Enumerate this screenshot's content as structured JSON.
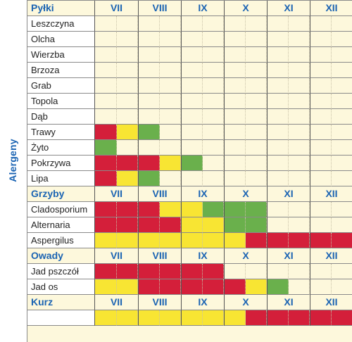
{
  "side_label": "Alergeny",
  "colors": {
    "red": "#d41f3a",
    "yellow": "#f8e533",
    "green": "#6ab04c",
    "background": "#fdf8dc",
    "header_text": "#1b64b3"
  },
  "months": [
    "VII",
    "VIII",
    "IX",
    "X",
    "XI",
    "XII"
  ],
  "half_month_columns": 12,
  "value_codes": {
    "0": "none",
    "1": "green",
    "2": "yellow",
    "3": "red"
  },
  "sections": [
    {
      "title": "Pyłki",
      "show_months": true,
      "rows": [
        {
          "name": "Leszczyna",
          "values": [
            0,
            0,
            0,
            0,
            0,
            0,
            0,
            0,
            0,
            0,
            0,
            0
          ]
        },
        {
          "name": "Olcha",
          "values": [
            0,
            0,
            0,
            0,
            0,
            0,
            0,
            0,
            0,
            0,
            0,
            0
          ]
        },
        {
          "name": "Wierzba",
          "values": [
            0,
            0,
            0,
            0,
            0,
            0,
            0,
            0,
            0,
            0,
            0,
            0
          ]
        },
        {
          "name": "Brzoza",
          "values": [
            0,
            0,
            0,
            0,
            0,
            0,
            0,
            0,
            0,
            0,
            0,
            0
          ]
        },
        {
          "name": "Grab",
          "values": [
            0,
            0,
            0,
            0,
            0,
            0,
            0,
            0,
            0,
            0,
            0,
            0
          ]
        },
        {
          "name": "Topola",
          "values": [
            0,
            0,
            0,
            0,
            0,
            0,
            0,
            0,
            0,
            0,
            0,
            0
          ]
        },
        {
          "name": "Dąb",
          "values": [
            0,
            0,
            0,
            0,
            0,
            0,
            0,
            0,
            0,
            0,
            0,
            0
          ]
        },
        {
          "name": "Trawy",
          "values": [
            3,
            2,
            1,
            0,
            0,
            0,
            0,
            0,
            0,
            0,
            0,
            0
          ]
        },
        {
          "name": "Żyto",
          "values": [
            1,
            0,
            0,
            0,
            0,
            0,
            0,
            0,
            0,
            0,
            0,
            0
          ]
        },
        {
          "name": "Pokrzywa",
          "values": [
            3,
            3,
            3,
            2,
            1,
            0,
            0,
            0,
            0,
            0,
            0,
            0
          ]
        },
        {
          "name": "Lipa",
          "values": [
            3,
            2,
            1,
            0,
            0,
            0,
            0,
            0,
            0,
            0,
            0,
            0
          ]
        }
      ]
    },
    {
      "title": "Grzyby",
      "show_months": true,
      "rows": [
        {
          "name": "Cladosporium",
          "values": [
            3,
            3,
            3,
            2,
            2,
            1,
            1,
            1,
            0,
            0,
            0,
            0
          ]
        },
        {
          "name": "Alternaria",
          "values": [
            3,
            3,
            3,
            3,
            2,
            2,
            1,
            1,
            0,
            0,
            0,
            0
          ]
        },
        {
          "name": "Aspergilus",
          "values": [
            2,
            2,
            2,
            2,
            2,
            2,
            2,
            3,
            3,
            3,
            3,
            3
          ]
        }
      ]
    },
    {
      "title": "Owady",
      "show_months": true,
      "rows": [
        {
          "name": "Jad pszczół",
          "values": [
            3,
            3,
            3,
            3,
            3,
            3,
            0,
            0,
            0,
            0,
            0,
            0
          ]
        },
        {
          "name": "Jad os",
          "values": [
            2,
            2,
            3,
            3,
            3,
            3,
            3,
            2,
            1,
            0,
            0,
            0
          ]
        }
      ]
    },
    {
      "title": "Kurz",
      "show_months": true,
      "rows": [
        {
          "name": "",
          "values": [
            2,
            2,
            2,
            2,
            2,
            2,
            2,
            3,
            3,
            3,
            3,
            3
          ]
        }
      ]
    }
  ]
}
